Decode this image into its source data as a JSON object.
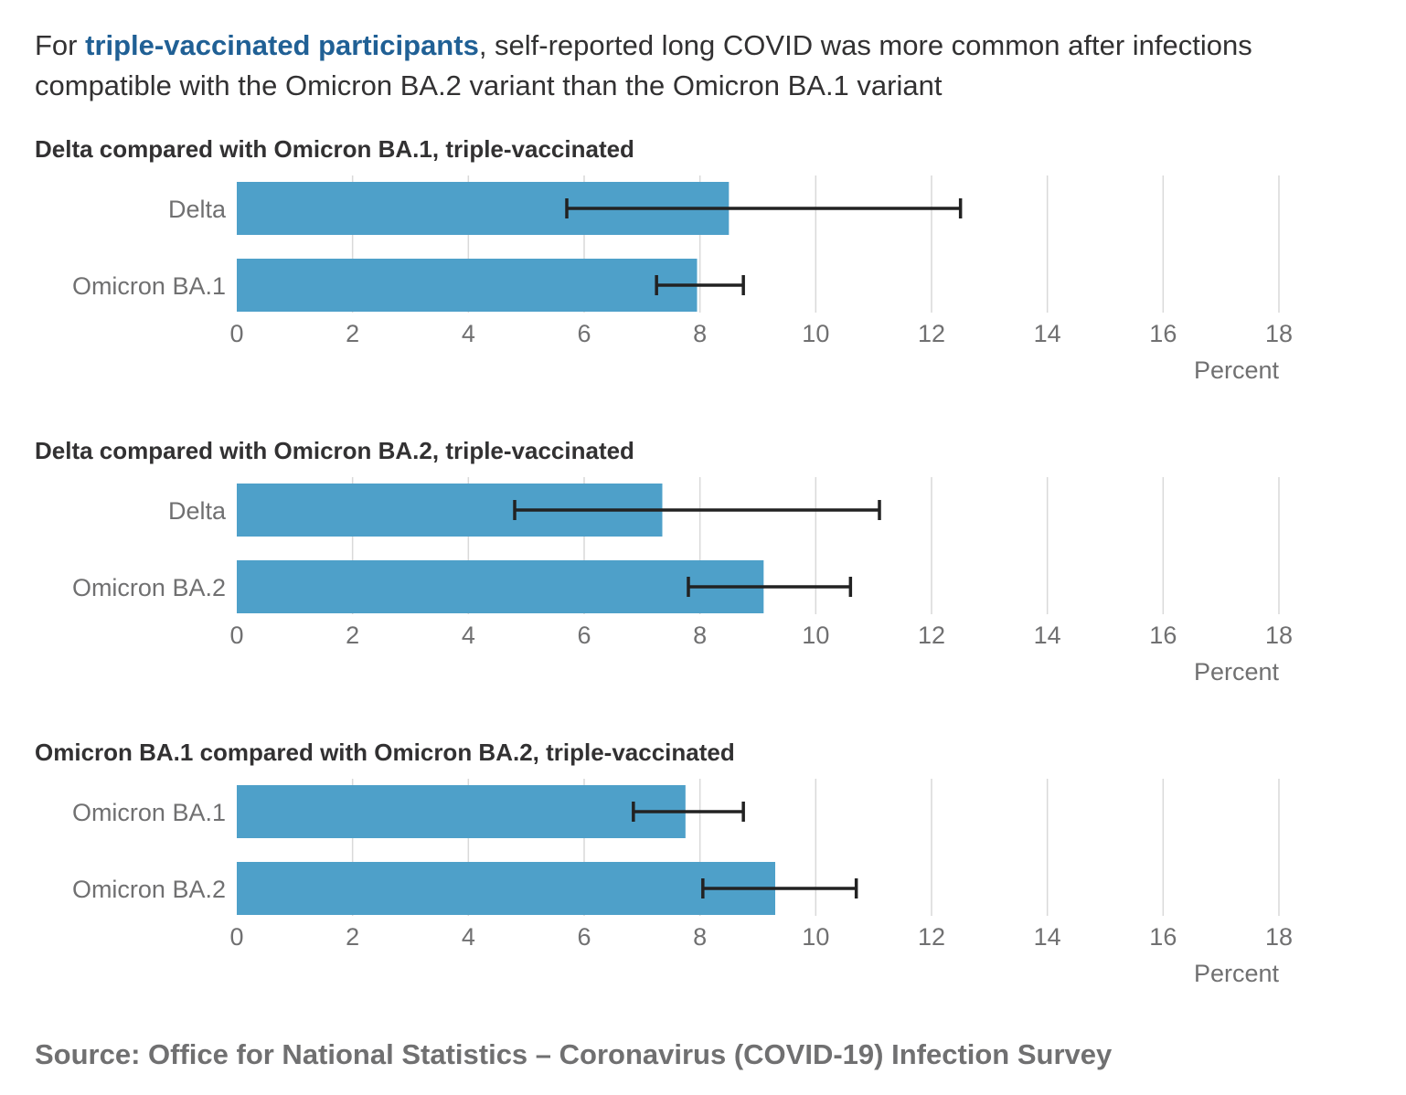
{
  "headline": {
    "prefix": "For ",
    "highlight": "triple-vaccinated participants",
    "suffix": ", self-reported long COVID was more common after infections compatible with the Omicron BA.2 variant than the Omicron BA.1 variant"
  },
  "source": "Source: Office for National Statistics – Coronavirus (COVID-19) Infection Survey",
  "colors": {
    "bar": "#4ea0c9",
    "error_bar": "#222222",
    "grid": "#d9d9d9",
    "highlight": "#206095"
  },
  "chart_data": [
    {
      "type": "bar",
      "orientation": "horizontal",
      "title": "Delta compared with Omicron BA.1, triple-vaccinated",
      "xlabel": "Percent",
      "xlim": [
        0,
        18
      ],
      "ticks": [
        0,
        2,
        4,
        6,
        8,
        10,
        12,
        14,
        16,
        18
      ],
      "grid": true,
      "categories": [
        "Delta",
        "Omicron BA.1"
      ],
      "values": [
        8.5,
        7.95
      ],
      "ci_lower": [
        5.7,
        7.25
      ],
      "ci_upper": [
        12.5,
        8.75
      ]
    },
    {
      "type": "bar",
      "orientation": "horizontal",
      "title": "Delta compared with Omicron BA.2, triple-vaccinated",
      "xlabel": "Percent",
      "xlim": [
        0,
        18
      ],
      "ticks": [
        0,
        2,
        4,
        6,
        8,
        10,
        12,
        14,
        16,
        18
      ],
      "grid": true,
      "categories": [
        "Delta",
        "Omicron BA.2"
      ],
      "values": [
        7.35,
        9.1
      ],
      "ci_lower": [
        4.8,
        7.8
      ],
      "ci_upper": [
        11.1,
        10.6
      ]
    },
    {
      "type": "bar",
      "orientation": "horizontal",
      "title": "Omicron BA.1 compared with Omicron BA.2, triple-vaccinated",
      "xlabel": "Percent",
      "xlim": [
        0,
        18
      ],
      "ticks": [
        0,
        2,
        4,
        6,
        8,
        10,
        12,
        14,
        16,
        18
      ],
      "grid": true,
      "categories": [
        "Omicron BA.1",
        "Omicron BA.2"
      ],
      "values": [
        7.75,
        9.3
      ],
      "ci_lower": [
        6.85,
        8.05
      ],
      "ci_upper": [
        8.75,
        10.7
      ]
    }
  ]
}
